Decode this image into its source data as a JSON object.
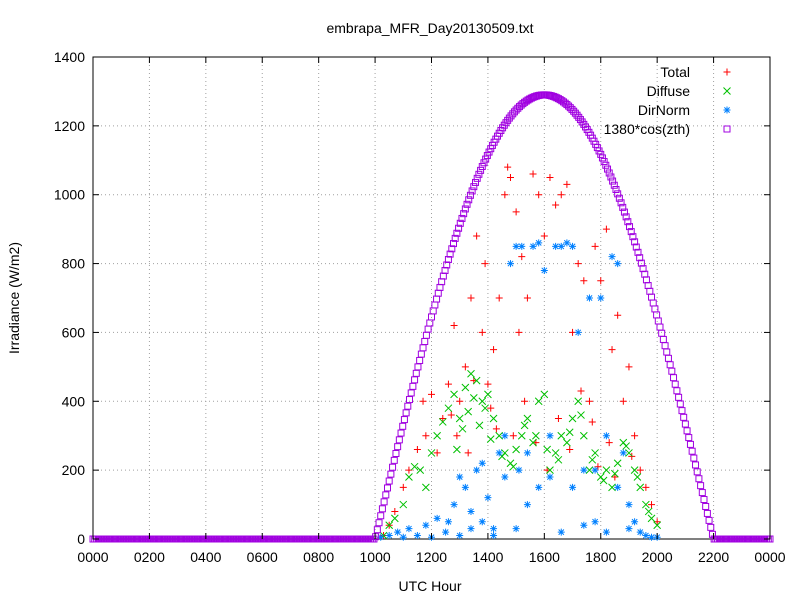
{
  "chart_data": {
    "type": "scatter",
    "title": "embrapa_MFR_Day20130509.txt",
    "xlabel": "UTC Hour",
    "ylabel": "Irradiance (W/m2)",
    "xlim": [
      0,
      2400
    ],
    "ylim": [
      0,
      1400
    ],
    "x_ticks": [
      "0000",
      "0200",
      "0400",
      "0600",
      "0800",
      "1000",
      "1200",
      "1400",
      "1600",
      "1800",
      "2000",
      "2200",
      "0000"
    ],
    "y_ticks": [
      "0",
      "200",
      "400",
      "600",
      "800",
      "1000",
      "1200",
      "1400"
    ],
    "grid": true,
    "legend_position": "top-right",
    "series": [
      {
        "name": "Total",
        "marker": "plus",
        "color": "#ff0000",
        "points": [
          [
            1030,
            10
          ],
          [
            1050,
            40
          ],
          [
            1070,
            80
          ],
          [
            1100,
            150
          ],
          [
            1120,
            200
          ],
          [
            1150,
            260
          ],
          [
            1170,
            400
          ],
          [
            1180,
            300
          ],
          [
            1200,
            420
          ],
          [
            1220,
            250
          ],
          [
            1240,
            350
          ],
          [
            1260,
            450
          ],
          [
            1280,
            620
          ],
          [
            1300,
            400
          ],
          [
            1320,
            500
          ],
          [
            1340,
            700
          ],
          [
            1360,
            880
          ],
          [
            1380,
            600
          ],
          [
            1390,
            800
          ],
          [
            1400,
            450
          ],
          [
            1420,
            550
          ],
          [
            1440,
            700
          ],
          [
            1460,
            1000
          ],
          [
            1470,
            1080
          ],
          [
            1480,
            1050
          ],
          [
            1500,
            950
          ],
          [
            1510,
            600
          ],
          [
            1520,
            820
          ],
          [
            1540,
            700
          ],
          [
            1560,
            1060
          ],
          [
            1580,
            1000
          ],
          [
            1600,
            880
          ],
          [
            1620,
            1050
          ],
          [
            1640,
            970
          ],
          [
            1660,
            1000
          ],
          [
            1680,
            1030
          ],
          [
            1700,
            600
          ],
          [
            1720,
            800
          ],
          [
            1740,
            750
          ],
          [
            1760,
            400
          ],
          [
            1780,
            850
          ],
          [
            1800,
            750
          ],
          [
            1820,
            900
          ],
          [
            1840,
            550
          ],
          [
            1860,
            650
          ],
          [
            1880,
            400
          ],
          [
            1900,
            500
          ],
          [
            1920,
            300
          ],
          [
            1940,
            200
          ],
          [
            1960,
            150
          ],
          [
            1980,
            100
          ],
          [
            2000,
            50
          ],
          [
            1290,
            300
          ],
          [
            1330,
            250
          ],
          [
            1410,
            380
          ],
          [
            1490,
            300
          ],
          [
            1530,
            400
          ],
          [
            1610,
            200
          ],
          [
            1650,
            350
          ],
          [
            1730,
            430
          ],
          [
            1790,
            210
          ],
          [
            1850,
            180
          ],
          [
            1270,
            360
          ],
          [
            1350,
            460
          ],
          [
            1430,
            320
          ],
          [
            1570,
            280
          ],
          [
            1690,
            260
          ],
          [
            1770,
            340
          ],
          [
            1830,
            280
          ],
          [
            1910,
            240
          ]
        ]
      },
      {
        "name": "Diffuse",
        "marker": "cross",
        "color": "#00c000",
        "points": [
          [
            1030,
            10
          ],
          [
            1050,
            40
          ],
          [
            1070,
            60
          ],
          [
            1100,
            100
          ],
          [
            1120,
            180
          ],
          [
            1140,
            210
          ],
          [
            1160,
            200
          ],
          [
            1180,
            150
          ],
          [
            1200,
            250
          ],
          [
            1220,
            300
          ],
          [
            1240,
            340
          ],
          [
            1260,
            380
          ],
          [
            1280,
            420
          ],
          [
            1300,
            350
          ],
          [
            1320,
            440
          ],
          [
            1340,
            480
          ],
          [
            1360,
            460
          ],
          [
            1380,
            400
          ],
          [
            1400,
            420
          ],
          [
            1420,
            350
          ],
          [
            1440,
            300
          ],
          [
            1460,
            250
          ],
          [
            1480,
            220
          ],
          [
            1500,
            260
          ],
          [
            1520,
            300
          ],
          [
            1540,
            350
          ],
          [
            1560,
            280
          ],
          [
            1580,
            400
          ],
          [
            1600,
            420
          ],
          [
            1620,
            200
          ],
          [
            1640,
            250
          ],
          [
            1660,
            300
          ],
          [
            1680,
            280
          ],
          [
            1700,
            350
          ],
          [
            1720,
            400
          ],
          [
            1740,
            300
          ],
          [
            1760,
            200
          ],
          [
            1780,
            250
          ],
          [
            1800,
            180
          ],
          [
            1820,
            200
          ],
          [
            1840,
            150
          ],
          [
            1860,
            220
          ],
          [
            1880,
            280
          ],
          [
            1900,
            250
          ],
          [
            1920,
            200
          ],
          [
            1940,
            150
          ],
          [
            1960,
            100
          ],
          [
            1980,
            60
          ],
          [
            2000,
            40
          ],
          [
            1290,
            260
          ],
          [
            1310,
            320
          ],
          [
            1330,
            370
          ],
          [
            1350,
            410
          ],
          [
            1370,
            330
          ],
          [
            1390,
            380
          ],
          [
            1410,
            290
          ],
          [
            1450,
            240
          ],
          [
            1490,
            210
          ],
          [
            1530,
            330
          ],
          [
            1570,
            300
          ],
          [
            1610,
            260
          ],
          [
            1650,
            230
          ],
          [
            1690,
            310
          ],
          [
            1730,
            360
          ],
          [
            1770,
            230
          ],
          [
            1810,
            170
          ],
          [
            1850,
            190
          ],
          [
            1890,
            270
          ],
          [
            1930,
            180
          ],
          [
            1970,
            80
          ]
        ]
      },
      {
        "name": "DirNorm",
        "marker": "star",
        "color": "#0080ff",
        "points": [
          [
            1020,
            5
          ],
          [
            1050,
            10
          ],
          [
            1080,
            20
          ],
          [
            1100,
            5
          ],
          [
            1120,
            30
          ],
          [
            1150,
            10
          ],
          [
            1180,
            40
          ],
          [
            1200,
            5
          ],
          [
            1220,
            60
          ],
          [
            1250,
            20
          ],
          [
            1280,
            100
          ],
          [
            1300,
            10
          ],
          [
            1320,
            150
          ],
          [
            1340,
            30
          ],
          [
            1360,
            200
          ],
          [
            1380,
            50
          ],
          [
            1400,
            120
          ],
          [
            1420,
            30
          ],
          [
            1440,
            250
          ],
          [
            1460,
            300
          ],
          [
            1480,
            800
          ],
          [
            1500,
            850
          ],
          [
            1510,
            200
          ],
          [
            1520,
            850
          ],
          [
            1540,
            100
          ],
          [
            1560,
            850
          ],
          [
            1580,
            860
          ],
          [
            1600,
            780
          ],
          [
            1620,
            300
          ],
          [
            1640,
            850
          ],
          [
            1660,
            850
          ],
          [
            1680,
            860
          ],
          [
            1700,
            850
          ],
          [
            1720,
            600
          ],
          [
            1740,
            200
          ],
          [
            1760,
            700
          ],
          [
            1780,
            50
          ],
          [
            1800,
            700
          ],
          [
            1820,
            300
          ],
          [
            1840,
            820
          ],
          [
            1860,
            800
          ],
          [
            1880,
            250
          ],
          [
            1900,
            100
          ],
          [
            1920,
            50
          ],
          [
            1940,
            20
          ],
          [
            1960,
            10
          ],
          [
            1980,
            5
          ],
          [
            2000,
            5
          ],
          [
            1260,
            50
          ],
          [
            1340,
            80
          ],
          [
            1420,
            10
          ],
          [
            1500,
            30
          ],
          [
            1580,
            150
          ],
          [
            1660,
            20
          ],
          [
            1740,
            40
          ],
          [
            1820,
            20
          ],
          [
            1900,
            30
          ],
          [
            1300,
            180
          ],
          [
            1380,
            220
          ],
          [
            1460,
            180
          ],
          [
            1540,
            250
          ],
          [
            1620,
            180
          ],
          [
            1700,
            150
          ],
          [
            1780,
            200
          ],
          [
            1860,
            150
          ]
        ]
      },
      {
        "name": "1380*cos(zth)",
        "marker": "square",
        "color": "#a000e0"
      }
    ]
  }
}
